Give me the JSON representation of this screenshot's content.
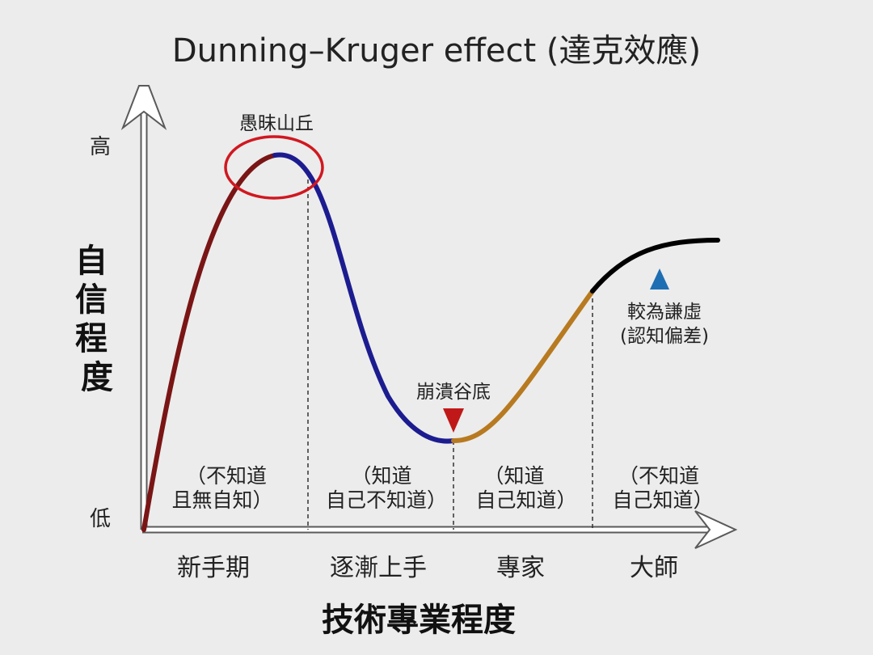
{
  "title": "Dunning–Kruger effect (達克效應)",
  "y_axis": {
    "label": "自信程度",
    "high": "高",
    "low": "低"
  },
  "x_axis": {
    "label": "技術專業程度"
  },
  "stages": [
    {
      "name": "新手期",
      "note_line1": "（不知道",
      "note_line2": "且無自知）"
    },
    {
      "name": "逐漸上手",
      "note_line1": "（知道",
      "note_line2": "自己不知道）"
    },
    {
      "name": "專家",
      "note_line1": "（知道",
      "note_line2": "自己知道）"
    },
    {
      "name": "大師",
      "note_line1": "（不知道",
      "note_line2": "自己知道）"
    }
  ],
  "annotations": {
    "peak": "愚昧山丘",
    "valley": "崩潰谷底",
    "plateau_line1": "較為謙虛",
    "plateau_line2": "(認知偏差)"
  },
  "colors": {
    "novice": "#7a1515",
    "learning": "#1c1c90",
    "expert": "#b87a20",
    "master": "#000000",
    "peak_circle": "#d01820",
    "valley_marker": "#c01818",
    "plateau_marker": "#1e6eb4",
    "axis": "#ffffff",
    "background": "#ececec"
  }
}
